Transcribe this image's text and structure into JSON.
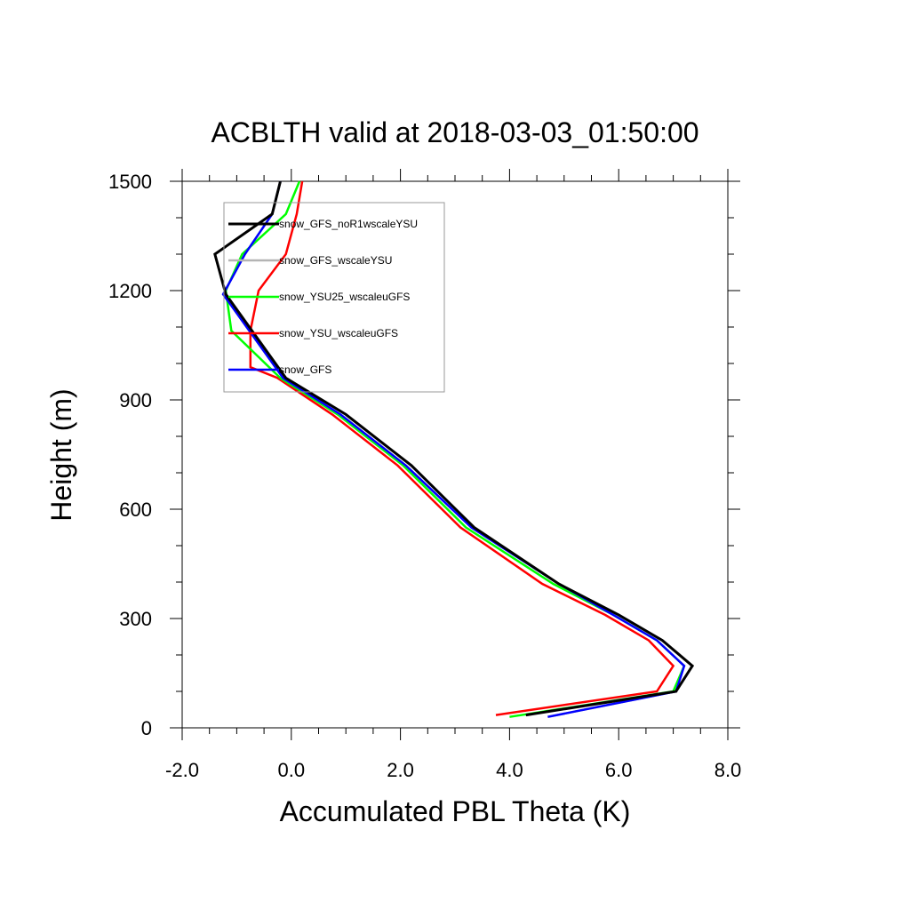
{
  "chart_data": {
    "type": "line",
    "title": "ACBLTH valid at 2018-03-03_01:50:00",
    "xlabel": "Accumulated PBL Theta (K)",
    "ylabel": "Height (m)",
    "xlim": [
      -2.0,
      8.0
    ],
    "ylim": [
      0,
      1500
    ],
    "xticks": [
      -2.0,
      0.0,
      2.0,
      4.0,
      6.0,
      8.0
    ],
    "xtick_labels": [
      "-2.0",
      "0.0",
      "2.0",
      "4.0",
      "6.0",
      "8.0"
    ],
    "yticks": [
      0,
      300,
      600,
      900,
      1200,
      1500
    ],
    "ytick_labels": [
      "0",
      "300",
      "600",
      "900",
      "1200",
      "1500"
    ],
    "grid": false,
    "legend_position": "top-left",
    "series": [
      {
        "name": "snow_GFS_noR1wscaleYSU",
        "color": "#000000",
        "points": [
          [
            4.3,
            35
          ],
          [
            7.05,
            100
          ],
          [
            7.35,
            170
          ],
          [
            6.8,
            240
          ],
          [
            6.0,
            310
          ],
          [
            4.9,
            395
          ],
          [
            3.35,
            550
          ],
          [
            2.2,
            720
          ],
          [
            1.0,
            860
          ],
          [
            -0.1,
            960
          ],
          [
            -1.2,
            1190
          ],
          [
            -1.4,
            1300
          ],
          [
            -0.35,
            1410
          ],
          [
            -0.2,
            1500
          ]
        ]
      },
      {
        "name": "snow_GFS_wscaleYSU",
        "color": "#b4b4b4",
        "points": [
          [
            4.7,
            30
          ],
          [
            7.05,
            100
          ],
          [
            7.2,
            170
          ],
          [
            6.7,
            240
          ],
          [
            5.9,
            310
          ],
          [
            4.9,
            395
          ],
          [
            3.3,
            550
          ],
          [
            2.1,
            720
          ],
          [
            0.9,
            860
          ],
          [
            -0.15,
            960
          ],
          [
            -1.25,
            1190
          ],
          [
            -0.85,
            1300
          ],
          [
            -0.35,
            1410
          ],
          [
            -0.2,
            1500
          ]
        ]
      },
      {
        "name": "snow_YSU25_wscaleuGFS",
        "color": "#00ff00",
        "points": [
          [
            4.0,
            30
          ],
          [
            7.0,
            100
          ],
          [
            7.2,
            170
          ],
          [
            6.7,
            240
          ],
          [
            5.9,
            310
          ],
          [
            4.8,
            395
          ],
          [
            3.2,
            550
          ],
          [
            2.05,
            720
          ],
          [
            0.85,
            860
          ],
          [
            -0.2,
            960
          ],
          [
            -1.1,
            1090
          ],
          [
            -1.2,
            1200
          ],
          [
            -0.9,
            1300
          ],
          [
            -0.1,
            1410
          ],
          [
            0.15,
            1500
          ]
        ]
      },
      {
        "name": "snow_YSU_wscaleuGFS",
        "color": "#ff0000",
        "points": [
          [
            3.75,
            35
          ],
          [
            6.7,
            100
          ],
          [
            7.0,
            170
          ],
          [
            6.55,
            240
          ],
          [
            5.75,
            310
          ],
          [
            4.6,
            395
          ],
          [
            3.1,
            550
          ],
          [
            1.95,
            720
          ],
          [
            0.75,
            860
          ],
          [
            -0.25,
            960
          ],
          [
            -0.75,
            990
          ],
          [
            -0.75,
            1090
          ],
          [
            -0.6,
            1200
          ],
          [
            -0.1,
            1300
          ],
          [
            0.1,
            1410
          ],
          [
            0.2,
            1500
          ]
        ]
      },
      {
        "name": "snow_GFS",
        "color": "#0000ff",
        "points": [
          [
            4.7,
            30
          ],
          [
            7.05,
            100
          ],
          [
            7.2,
            170
          ],
          [
            6.7,
            240
          ],
          [
            5.9,
            310
          ],
          [
            4.9,
            395
          ],
          [
            3.3,
            550
          ],
          [
            2.1,
            720
          ],
          [
            0.9,
            860
          ],
          [
            -0.15,
            960
          ],
          [
            -1.25,
            1190
          ],
          [
            -0.85,
            1300
          ],
          [
            -0.35,
            1410
          ],
          [
            -0.2,
            1500
          ]
        ]
      }
    ]
  }
}
